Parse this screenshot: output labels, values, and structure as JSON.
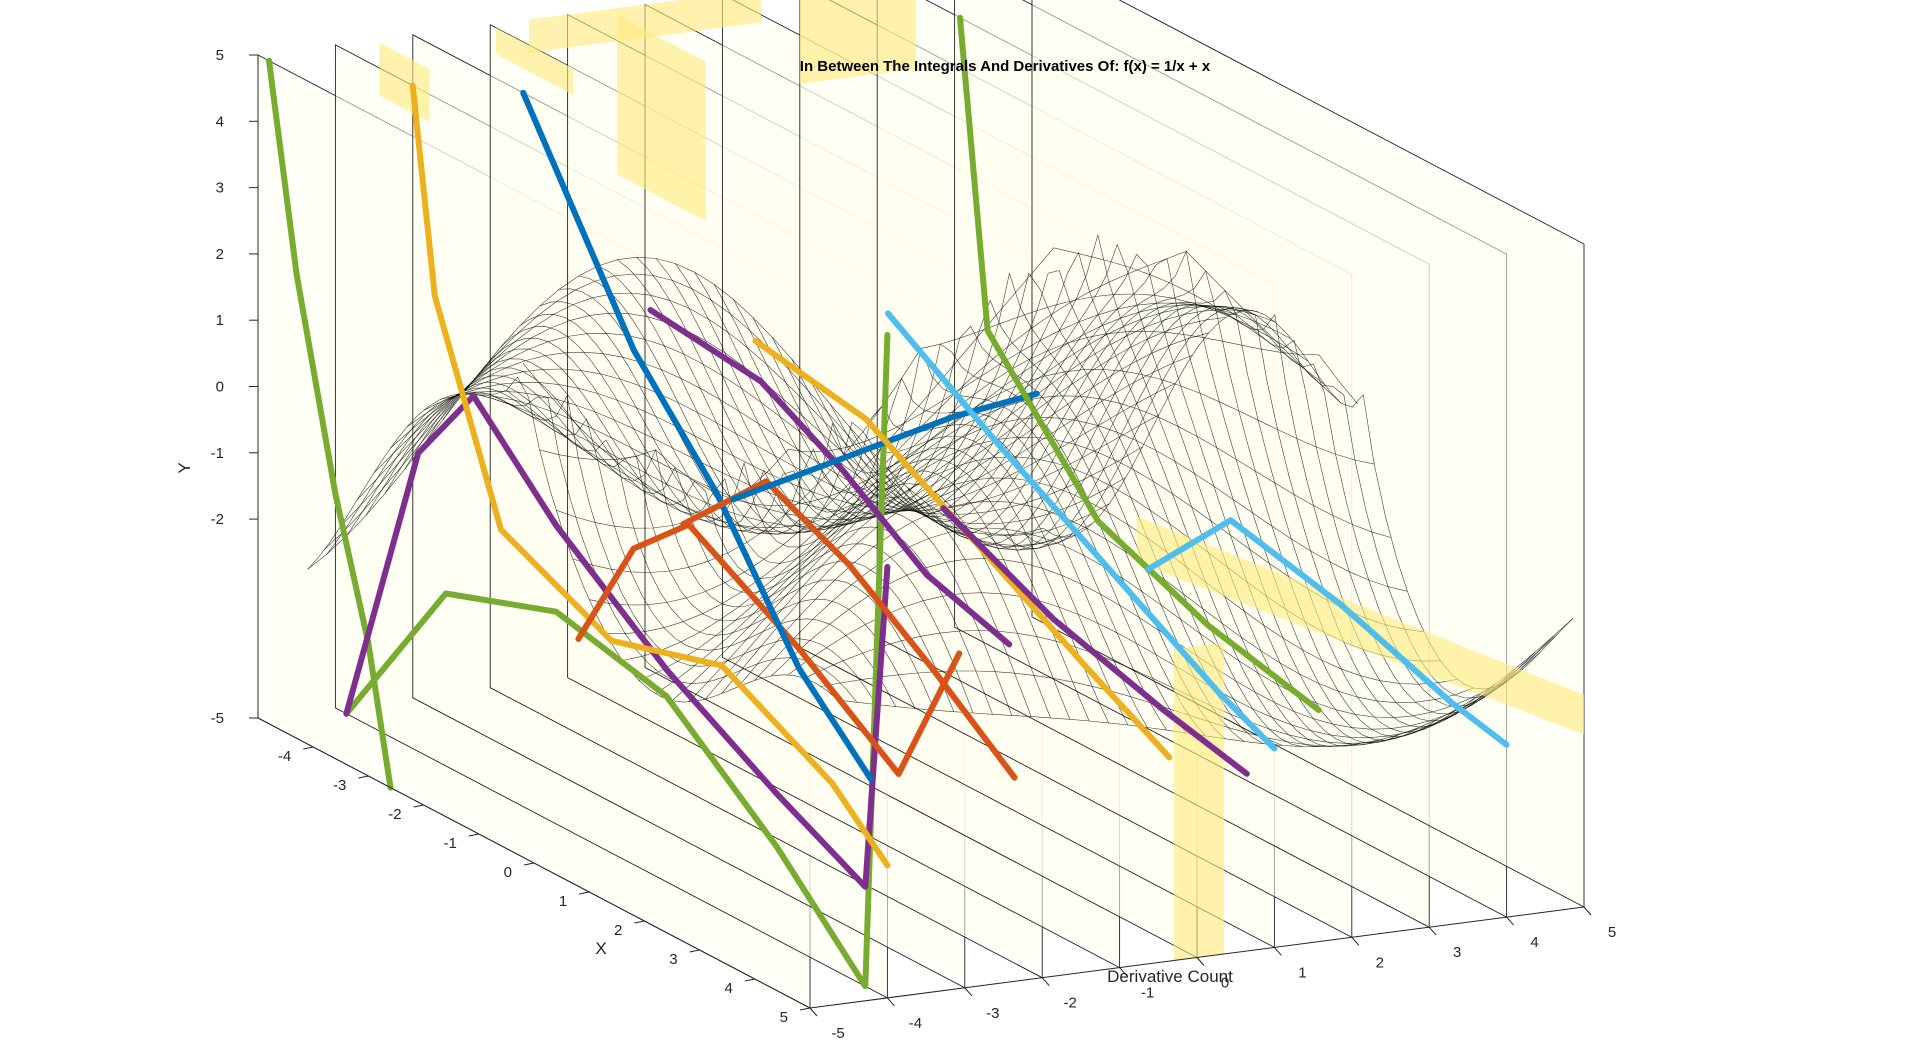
{
  "chart_data": {
    "type": "line",
    "title": "In Between The Integrals And Derivatives Of: f(x) = 1/x + x",
    "xlabel": "X",
    "ylabel": "Y",
    "zlabel": "Derivative Count",
    "x_ticks": [
      "-4",
      "-3",
      "-2",
      "-1",
      "0",
      "1",
      "2",
      "3",
      "4",
      "5"
    ],
    "y_ticks": [
      "5",
      "4",
      "3",
      "2",
      "1",
      "0",
      "-1",
      "-2",
      "-5"
    ],
    "d_ticks": [
      "-5",
      "-4",
      "-3",
      "-2",
      "-1",
      "0",
      "1",
      "2",
      "3",
      "4",
      "5"
    ],
    "xlim": [
      -5,
      5
    ],
    "ylim": [
      -5,
      5
    ],
    "dlim": [
      -5,
      5
    ],
    "grid": false,
    "series": [
      {
        "color": "#77AC30",
        "values": [
          [
            -4.8,
            5
          ],
          [
            -4.3,
            2
          ],
          [
            -3.6,
            -1
          ],
          [
            -3.0,
            -3
          ],
          [
            -2.6,
            -5
          ]
        ]
      },
      {
        "color": "#77AC30",
        "values": [
          [
            -4.8,
            -5
          ],
          [
            -3.0,
            -2.4
          ],
          [
            -1.0,
            -1.8
          ],
          [
            1.0,
            -2.2
          ],
          [
            3.0,
            -3.6
          ],
          [
            4.6,
            -5
          ],
          [
            5.0,
            5
          ]
        ]
      },
      {
        "color": "#7E2F8E",
        "values": [
          [
            -4.8,
            -5
          ],
          [
            -3.5,
            -0.5
          ],
          [
            -2.5,
            0.8
          ],
          [
            -1.0,
            -0.5
          ],
          [
            1.0,
            -1.8
          ],
          [
            3.0,
            -2.8
          ],
          [
            4.6,
            -3.5
          ],
          [
            5.0,
            1.5
          ]
        ]
      },
      {
        "color": "#EDB120",
        "values": [
          [
            -3.6,
            5
          ],
          [
            -3.2,
            2
          ],
          [
            -2.0,
            -1.0
          ],
          [
            0.0,
            -1.8
          ],
          [
            2.0,
            -1.3
          ],
          [
            4.0,
            -2.2
          ],
          [
            5.0,
            -3.0
          ]
        ]
      },
      {
        "color": "#D95319",
        "values": [
          [
            -2.0,
            -2.8
          ],
          [
            -1.0,
            -1.0
          ],
          [
            0.0,
            -0.2
          ],
          [
            2.0,
            -1.2
          ],
          [
            3.8,
            -2.3
          ],
          [
            4.9,
            0.0
          ]
        ]
      },
      {
        "color": "#0072BD",
        "values": [
          [
            -3.0,
            5
          ],
          [
            -1.0,
            2
          ],
          [
            0.5,
            0.5
          ],
          [
            2.0,
            -1.5
          ],
          [
            3.3,
            -2.6
          ]
        ]
      },
      {
        "color": "#D95319",
        "values": [
          [
            -1.5,
            -1.0
          ],
          [
            0.0,
            0.3
          ],
          [
            1.5,
            -0.3
          ],
          [
            3.0,
            -1.2
          ],
          [
            4.5,
            -2.2
          ]
        ]
      },
      {
        "color": "#7E2F8E",
        "values": [
          [
            -3.5,
            1.2
          ],
          [
            -1.5,
            1.0
          ],
          [
            0.0,
            0.3
          ],
          [
            1.5,
            -0.6
          ],
          [
            3.0,
            -1.0
          ]
        ]
      },
      {
        "color": "#0072BD",
        "values": [
          [
            -2.0,
            -1.0
          ],
          [
            0.0,
            0.5
          ],
          [
            2.0,
            2.0
          ],
          [
            3.5,
            3.0
          ]
        ]
      },
      {
        "color": "#EDB120",
        "values": [
          [
            -3.0,
            0.8
          ],
          [
            -1.0,
            0.5
          ],
          [
            1.0,
            -0.5
          ],
          [
            3.0,
            -1.5
          ],
          [
            4.5,
            -2.2
          ]
        ]
      },
      {
        "color": "#4DBEEE",
        "values": [
          [
            -2.0,
            1.5
          ],
          [
            0.0,
            0.4
          ],
          [
            2.0,
            -0.6
          ],
          [
            4.0,
            -1.6
          ],
          [
            5.0,
            -2.0
          ]
        ]
      },
      {
        "color": "#7E2F8E",
        "values": [
          [
            -1.0,
            -1.0
          ],
          [
            1.0,
            -1.8
          ],
          [
            3.0,
            -2.3
          ],
          [
            4.5,
            -2.6
          ]
        ]
      },
      {
        "color": "#77AC30",
        "values": [
          [
            -3.5,
            5
          ],
          [
            -3.0,
            0.5
          ],
          [
            -1.0,
            -1.5
          ],
          [
            1.0,
            -2.2
          ],
          [
            3.0,
            -2.6
          ]
        ]
      },
      {
        "color": "#4DBEEE",
        "values": [
          [
            -1.5,
            -2.6
          ],
          [
            0.0,
            -1.2
          ],
          [
            2.0,
            -1.6
          ],
          [
            4.0,
            -2.2
          ],
          [
            5.0,
            -2.4
          ]
        ]
      }
    ]
  }
}
